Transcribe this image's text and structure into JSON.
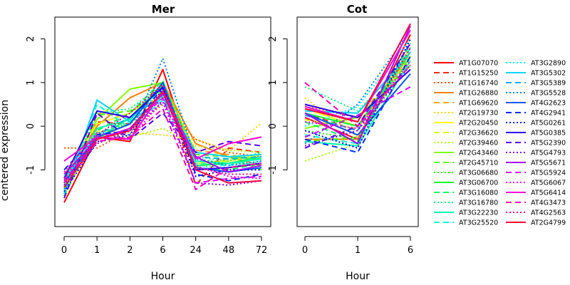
{
  "chart_data": [
    {
      "type": "line",
      "title": "Mer",
      "xlabel": "Hour",
      "ylabel": "centered expression",
      "categories": [
        "0",
        "1",
        "2",
        "6",
        "24",
        "48",
        "72"
      ],
      "yticks": [
        "-1",
        "0",
        "1",
        "2"
      ],
      "ylim": [
        -2.3,
        2.5
      ],
      "series_values": [
        [
          -1.75,
          -0.25,
          -0.35,
          1.3,
          -1.0,
          -0.95,
          -0.85
        ],
        [
          -1.4,
          0.1,
          0.05,
          1.0,
          -1.35,
          -0.5,
          -0.6
        ],
        [
          -0.5,
          -0.5,
          -0.1,
          0.5,
          -0.3,
          -0.6,
          -0.7
        ],
        [
          -1.3,
          0.0,
          0.65,
          1.0,
          -0.4,
          -0.7,
          -0.9
        ],
        [
          -1.2,
          0.3,
          0.2,
          0.75,
          -0.55,
          -0.65,
          -0.8
        ],
        [
          -1.5,
          -0.1,
          -0.15,
          -0.2,
          -0.3,
          -0.55,
          0.07
        ],
        [
          -1.1,
          0.05,
          0.3,
          0.85,
          -0.85,
          -0.8,
          -0.65
        ],
        [
          -1.35,
          -0.3,
          0.1,
          0.95,
          -0.95,
          -0.75,
          -0.7
        ],
        [
          -1.55,
          -0.2,
          -0.25,
          -0.05,
          -0.45,
          -0.55,
          -0.6
        ],
        [
          -1.25,
          0.15,
          0.85,
          1.0,
          -0.6,
          -0.7,
          -0.75
        ],
        [
          -1.45,
          0.25,
          0.35,
          0.8,
          -0.65,
          -0.7,
          -1.0
        ],
        [
          -1.3,
          -0.15,
          0.05,
          0.7,
          -0.75,
          -0.85,
          -0.9
        ],
        [
          -1.2,
          -0.3,
          0.2,
          0.95,
          -0.9,
          -0.85,
          -0.7
        ],
        [
          -1.6,
          -0.1,
          0.3,
          1.05,
          -0.95,
          -1.0,
          -0.85
        ],
        [
          -1.35,
          0.3,
          0.4,
          0.95,
          -0.7,
          -0.8,
          -0.6
        ],
        [
          -1.25,
          -0.05,
          0.15,
          0.9,
          -0.8,
          -0.85,
          -0.75
        ],
        [
          -1.4,
          0.5,
          -0.05,
          0.6,
          -0.85,
          -0.9,
          -0.7
        ],
        [
          -1.15,
          -0.2,
          0.1,
          0.85,
          -0.9,
          -0.95,
          -0.8
        ],
        [
          -1.55,
          0.6,
          0.1,
          0.65,
          -0.6,
          -0.7,
          -0.65
        ],
        [
          -1.3,
          -0.2,
          0.2,
          0.7,
          -0.7,
          -0.75,
          -0.7
        ],
        [
          -1.45,
          -0.15,
          -0.2,
          1.55,
          -0.75,
          -0.9,
          -0.8
        ],
        [
          -1.3,
          -0.25,
          0.05,
          1.0,
          -0.95,
          -1.05,
          -0.95
        ],
        [
          -1.0,
          -0.2,
          -0.1,
          0.9,
          -1.1,
          -1.25,
          -1.1
        ],
        [
          -1.5,
          -0.35,
          -0.2,
          0.85,
          -1.15,
          -1.0,
          -1.0
        ],
        [
          -1.2,
          0.35,
          0.2,
          0.9,
          -1.0,
          -0.95,
          -0.85
        ],
        [
          -1.65,
          0.3,
          -0.3,
          0.3,
          -0.6,
          -0.35,
          -0.45
        ],
        [
          -1.35,
          -0.4,
          -0.1,
          0.55,
          -1.3,
          -1.35,
          -1.25
        ],
        [
          -1.1,
          -0.3,
          -0.05,
          0.75,
          -0.7,
          -1.05,
          -0.9
        ],
        [
          -1.25,
          -0.3,
          -0.05,
          0.65,
          -1.3,
          -1.2,
          -1.15
        ],
        [
          -1.05,
          -0.15,
          -0.3,
          0.6,
          -0.9,
          -1.15,
          -1.2
        ],
        [
          -0.8,
          -0.25,
          -0.3,
          0.8,
          -0.75,
          -0.4,
          -0.25
        ],
        [
          -1.3,
          -0.35,
          -0.25,
          0.4,
          -1.45,
          -0.95,
          -0.85
        ],
        [
          -1.2,
          -0.2,
          0.3,
          0.95,
          -0.95,
          -1.1,
          -1.1
        ],
        [
          -1.4,
          -0.3,
          -0.1,
          0.8,
          -1.0,
          -1.3,
          -1.25
        ]
      ]
    },
    {
      "type": "line",
      "title": "Cot",
      "xlabel": "Hour",
      "ylabel": "",
      "categories": [
        "0",
        "1",
        "6"
      ],
      "yticks": [
        "-1",
        "0",
        "1",
        "2"
      ],
      "ylim": [
        -2.3,
        2.5
      ],
      "series_values": [
        [
          0.2,
          -0.3,
          2.1
        ],
        [
          0.3,
          -0.1,
          1.8
        ],
        [
          0.45,
          0.2,
          1.5
        ],
        [
          -0.3,
          -0.3,
          1.7
        ],
        [
          0.5,
          0.2,
          1.6
        ],
        [
          0.65,
          -0.25,
          1.7
        ],
        [
          0.4,
          0.0,
          1.8
        ],
        [
          0.15,
          -0.05,
          1.6
        ],
        [
          -0.8,
          -0.4,
          1.5
        ],
        [
          -0.05,
          0.2,
          1.4
        ],
        [
          -0.35,
          -0.25,
          1.6
        ],
        [
          -0.1,
          -0.3,
          1.8
        ],
        [
          0.3,
          0.0,
          1.7
        ],
        [
          0.1,
          -0.35,
          1.9
        ],
        [
          0.9,
          0.35,
          1.6
        ],
        [
          -0.35,
          -0.45,
          1.5
        ],
        [
          -0.2,
          -0.4,
          1.8
        ],
        [
          0.0,
          0.45,
          2.0
        ],
        [
          0.35,
          0.3,
          1.7
        ],
        [
          0.25,
          -0.1,
          1.9
        ],
        [
          -0.4,
          0.5,
          2.2
        ],
        [
          0.3,
          -0.2,
          1.2
        ],
        [
          -0.3,
          -0.6,
          1.6
        ],
        [
          -0.1,
          -0.5,
          2.0
        ],
        [
          0.5,
          0.2,
          1.3
        ],
        [
          -0.5,
          0.0,
          1.9
        ],
        [
          -0.45,
          -0.1,
          1.4
        ],
        [
          0.3,
          -0.4,
          2.3
        ],
        [
          -0.25,
          0.25,
          0.9
        ],
        [
          0.1,
          -0.05,
          1.5
        ],
        [
          0.45,
          0.1,
          2.2
        ],
        [
          1.0,
          0.0,
          1.4
        ],
        [
          0.2,
          -0.3,
          1.8
        ],
        [
          0.4,
          0.1,
          2.35
        ]
      ]
    }
  ],
  "legend": {
    "series": [
      {
        "name": "AT1G07070",
        "color": "#ff0000",
        "dash": "solid"
      },
      {
        "name": "AT1G15250",
        "color": "#ff2a00",
        "dash": "dashed"
      },
      {
        "name": "AT1G16740",
        "color": "#ff5500",
        "dash": "dotted"
      },
      {
        "name": "AT1G26880",
        "color": "#ff8000",
        "dash": "solid"
      },
      {
        "name": "AT1G69620",
        "color": "#ffaa00",
        "dash": "dashed"
      },
      {
        "name": "AT2G19730",
        "color": "#ffd400",
        "dash": "dotted"
      },
      {
        "name": "AT2G20450",
        "color": "#ffff00",
        "dash": "solid"
      },
      {
        "name": "AT2G36620",
        "color": "#d4ff00",
        "dash": "dashed"
      },
      {
        "name": "AT2G39460",
        "color": "#aaff00",
        "dash": "dotted"
      },
      {
        "name": "AT2G43460",
        "color": "#80ff00",
        "dash": "solid"
      },
      {
        "name": "AT2G45710",
        "color": "#55ff00",
        "dash": "dashed"
      },
      {
        "name": "AT3G06680",
        "color": "#2aff00",
        "dash": "dotted"
      },
      {
        "name": "AT3G06700",
        "color": "#00ff2a",
        "dash": "solid"
      },
      {
        "name": "AT3G16080",
        "color": "#00ff55",
        "dash": "dashed"
      },
      {
        "name": "AT3G16780",
        "color": "#00ff80",
        "dash": "dotted"
      },
      {
        "name": "AT3G22230",
        "color": "#00ffaa",
        "dash": "solid"
      },
      {
        "name": "AT3G25520",
        "color": "#00ffd4",
        "dash": "dashed"
      },
      {
        "name": "AT3G2890",
        "color": "#00ffff",
        "dash": "dotted"
      },
      {
        "name": "AT3G5302",
        "color": "#00d4ff",
        "dash": "solid"
      },
      {
        "name": "AT3G5389",
        "color": "#00aaff",
        "dash": "dashed"
      },
      {
        "name": "AT3G5528",
        "color": "#0080ff",
        "dash": "dotted"
      },
      {
        "name": "AT4G2623",
        "color": "#0055ff",
        "dash": "solid"
      },
      {
        "name": "AT4G2941",
        "color": "#002aff",
        "dash": "dashed"
      },
      {
        "name": "AT5G0261",
        "color": "#0000ff",
        "dash": "dotted"
      },
      {
        "name": "AT5G0385",
        "color": "#2a00ff",
        "dash": "solid"
      },
      {
        "name": "AT5G2390",
        "color": "#5500ff",
        "dash": "dashed"
      },
      {
        "name": "AT5G4793",
        "color": "#8000ff",
        "dash": "dotted"
      },
      {
        "name": "AT5G5671",
        "color": "#aa00ff",
        "dash": "solid"
      },
      {
        "name": "AT5G5924",
        "color": "#d400ff",
        "dash": "dashed"
      },
      {
        "name": "AT5G6067",
        "color": "#ff00ff",
        "dash": "dotted"
      },
      {
        "name": "AT5G6414",
        "color": "#ff00d4",
        "dash": "solid"
      },
      {
        "name": "AT4G3473",
        "color": "#ff00aa",
        "dash": "dashed"
      },
      {
        "name": "AT4G2563",
        "color": "#ff0080",
        "dash": "dotted"
      },
      {
        "name": "AT2G4799",
        "color": "#ff0040",
        "dash": "solid"
      }
    ]
  }
}
